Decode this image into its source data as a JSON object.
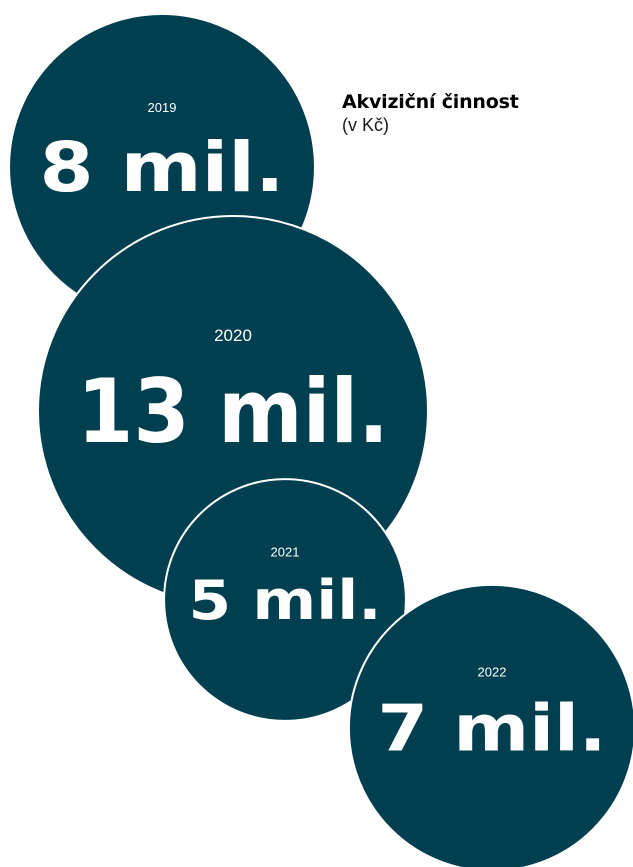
{
  "chart_data": {
    "type": "bubble",
    "title": "Akviziční činnost",
    "subtitle": "(v Kč)",
    "categories": [
      "2019",
      "2020",
      "2021",
      "2022"
    ],
    "values": [
      8,
      13,
      5,
      7
    ],
    "value_labels": [
      "8 mil.",
      "13 mil.",
      "5 mil.",
      "7 mil."
    ],
    "unit": "mil. Kč",
    "colors": {
      "bubble_fill": "#003f50",
      "bubble_outline": "#ffffff",
      "label_color": "#ffffff"
    }
  }
}
